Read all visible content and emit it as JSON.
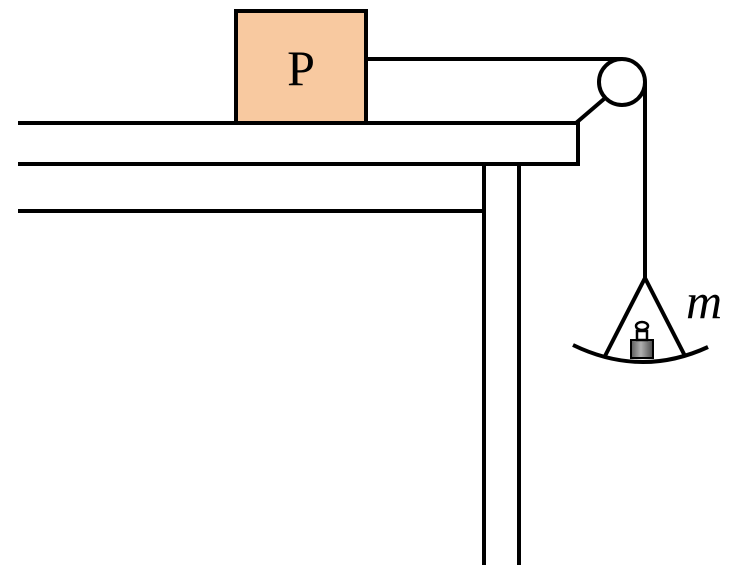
{
  "labels": {
    "block": "P",
    "hanging_mass": "m"
  },
  "colors": {
    "block_fill": "#f8c9a0",
    "line": "#000000",
    "weight_body": "#8a8a8a",
    "background": "#ffffff"
  }
}
